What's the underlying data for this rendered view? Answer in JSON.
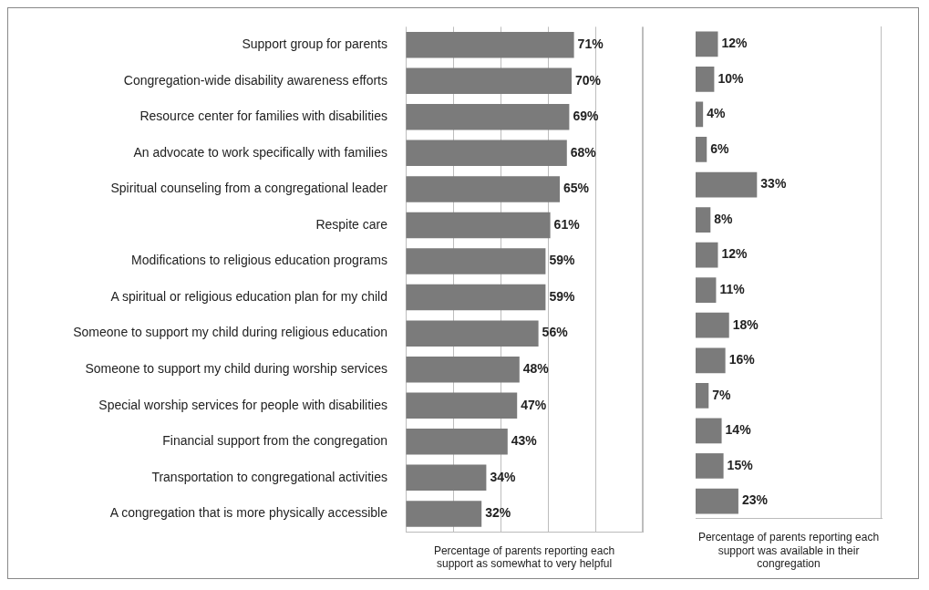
{
  "chart_data": [
    {
      "type": "bar",
      "orientation": "horizontal",
      "categories": [
        "Support group for parents",
        "Congregation-wide disability awareness efforts",
        "Resource center for families with disabilities",
        "An advocate to work specifically with families",
        "Spiritual counseling from a congregational leader",
        "Respite care",
        "Modifications to religious education programs",
        "A spiritual or religious education plan for my child",
        "Someone to support my child during religious education",
        "Someone to support my child during worship services",
        "Special worship services for people with disabilities",
        "Financial support from the congregation",
        "Transportation to congregational activities",
        "A congregation that is more physically accessible"
      ],
      "values": [
        71,
        70,
        69,
        68,
        65,
        61,
        59,
        59,
        56,
        48,
        47,
        43,
        34,
        32
      ],
      "value_labels": [
        "71%",
        "70%",
        "69%",
        "68%",
        "65%",
        "61%",
        "59%",
        "59%",
        "56%",
        "48%",
        "47%",
        "43%",
        "34%",
        "32%"
      ],
      "color": "#7b7b7b",
      "xlim": [
        0,
        100
      ],
      "xticks": [
        {
          "value": 0,
          "label": null
        },
        {
          "value": 20,
          "label": null
        },
        {
          "value": 40,
          "label": null
        },
        {
          "value": 60,
          "label": null
        },
        {
          "value": 80,
          "label": null
        },
        {
          "value": 100,
          "label": null
        }
      ],
      "grid": "x",
      "tick_labels": "y",
      "xlabel": "Percentage of parents reporting each support as somewhat to very helpful"
    },
    {
      "type": "bar",
      "orientation": "horizontal",
      "categories": [
        null,
        null,
        null,
        null,
        null,
        null,
        null,
        null,
        null,
        null,
        null,
        null,
        null,
        null
      ],
      "values": [
        12,
        10,
        4,
        6,
        33,
        8,
        12,
        11,
        18,
        16,
        7,
        14,
        15,
        23
      ],
      "value_labels": [
        "12%",
        "10%",
        "4%",
        "6%",
        "33%",
        "8%",
        "12%",
        "11%",
        "18%",
        "16%",
        "7%",
        "14%",
        "15%",
        "23%"
      ],
      "color": "#7b7b7b",
      "xlim": [
        0,
        100
      ],
      "tick_labels": false,
      "xlabel": "Percentage of parents reporting each support was available in their congregation"
    }
  ]
}
